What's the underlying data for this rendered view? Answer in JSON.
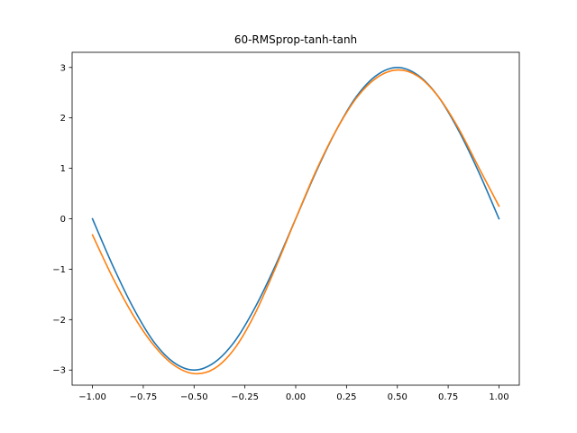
{
  "chart_data": {
    "type": "line",
    "title": "60-RMSprop-tanh-tanh",
    "xlabel": "",
    "ylabel": "",
    "xlim": [
      -1.1,
      1.1
    ],
    "ylim": [
      -3.3,
      3.3
    ],
    "xticks": [
      -1.0,
      -0.75,
      -0.5,
      -0.25,
      0.0,
      0.25,
      0.5,
      0.75,
      1.0
    ],
    "xtick_labels": [
      "−1.00",
      "−0.75",
      "−0.50",
      "−0.25",
      "0.00",
      "0.25",
      "0.50",
      "0.75",
      "1.00"
    ],
    "yticks": [
      -3,
      -2,
      -1,
      0,
      1,
      2,
      3
    ],
    "ytick_labels": [
      "−3",
      "−2",
      "−1",
      "0",
      "1",
      "2",
      "3"
    ],
    "grid": false,
    "series": [
      {
        "color": "#1f77b4",
        "x": [
          -1.0,
          -0.9,
          -0.8,
          -0.7,
          -0.6,
          -0.5,
          -0.4,
          -0.3,
          -0.2,
          -0.1,
          0.0,
          0.1,
          0.2,
          0.3,
          0.4,
          0.5,
          0.6,
          0.7,
          0.8,
          0.9,
          1.0
        ],
        "y": [
          0.0,
          -0.93,
          -1.76,
          -2.43,
          -2.85,
          -3.0,
          -2.85,
          -2.43,
          -1.76,
          -0.93,
          0.0,
          0.93,
          1.76,
          2.43,
          2.85,
          3.0,
          2.85,
          2.43,
          1.76,
          0.93,
          0.0
        ]
      },
      {
        "color": "#ff7f0e",
        "x": [
          -1.0,
          -0.9,
          -0.8,
          -0.7,
          -0.6,
          -0.5,
          -0.4,
          -0.3,
          -0.2,
          -0.1,
          0.0,
          0.1,
          0.2,
          0.3,
          0.4,
          0.5,
          0.6,
          0.7,
          0.8,
          0.9,
          1.0
        ],
        "y": [
          -0.32,
          -1.17,
          -1.91,
          -2.5,
          -2.9,
          -3.07,
          -2.97,
          -2.57,
          -1.88,
          -0.98,
          0.0,
          0.95,
          1.76,
          2.4,
          2.8,
          2.95,
          2.83,
          2.43,
          1.8,
          1.02,
          0.25
        ]
      }
    ]
  }
}
